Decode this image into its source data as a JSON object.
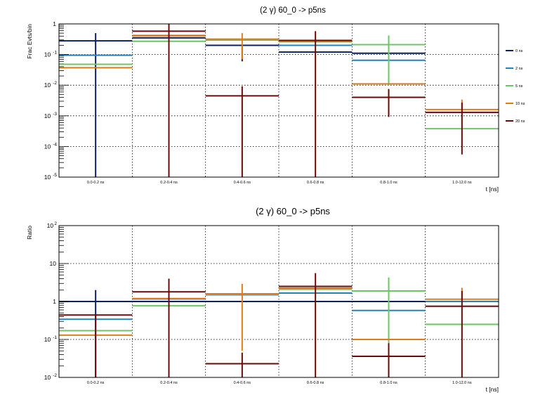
{
  "chart_data": [
    {
      "type": "line",
      "title": "(2 γ) 60_0 -> p5ns",
      "xlabel": "t [ns]",
      "ylabel": "Frac Evts/bin",
      "log_y": true,
      "ylim": [
        1e-05,
        1
      ],
      "grid": true,
      "legend_position": "right",
      "categories": [
        "0.0-0.2 ns",
        "0.2-0.4 ns",
        "0.4-0.6 ns",
        "0.6-0.8 ns",
        "0.8-1.0 ns",
        "1.0-12.0 ns"
      ],
      "y_ticks": [
        {
          "value": 1,
          "base": "1",
          "exp": ""
        },
        {
          "value": 0.1,
          "base": "10",
          "exp": "-1"
        },
        {
          "value": 0.01,
          "base": "10",
          "exp": "-2"
        },
        {
          "value": 0.001,
          "base": "10",
          "exp": "-3"
        },
        {
          "value": 0.0001,
          "base": "10",
          "exp": "-4"
        },
        {
          "value": 1e-05,
          "base": "10",
          "exp": "-5"
        }
      ],
      "series": [
        {
          "name": "0 ns",
          "color": "#0b1f5c",
          "values": [
            0.28,
            0.35,
            0.2,
            0.12,
            0.11,
            null
          ],
          "err_low": [
            1e-05,
            null,
            0.06,
            null,
            null,
            null
          ],
          "err_high": [
            0.5,
            null,
            null,
            null,
            null,
            null
          ]
        },
        {
          "name": "2 ns",
          "color": "#2a80b9",
          "values": [
            0.095,
            0.41,
            0.3,
            0.2,
            0.065,
            null
          ],
          "err_low": [
            null,
            null,
            null,
            null,
            null,
            null
          ],
          "err_high": [
            null,
            null,
            null,
            null,
            null,
            null
          ]
        },
        {
          "name": "5 ns",
          "color": "#6cc665",
          "values": [
            0.048,
            0.27,
            0.31,
            0.26,
            0.21,
            0.00038
          ],
          "err_low": [
            null,
            null,
            null,
            null,
            0.01,
            null
          ],
          "err_high": [
            null,
            null,
            null,
            null,
            0.42,
            null
          ]
        },
        {
          "name": "10 ns",
          "color": "#e07b1a",
          "values": [
            0.037,
            0.42,
            0.32,
            0.27,
            0.011,
            0.0016
          ],
          "err_low": [
            null,
            0.0026,
            0.07,
            null,
            null,
            null
          ],
          "err_high": [
            null,
            null,
            0.5,
            null,
            null,
            0.0034
          ]
        },
        {
          "name": "20 ns",
          "color": "#6b0a0a",
          "values": [
            null,
            0.58,
            0.0045,
            0.29,
            0.004,
            0.0013
          ],
          "err_low": [
            null,
            1e-05,
            1e-05,
            1e-05,
            0.00092,
            5.5e-05
          ],
          "err_high": [
            null,
            1.0,
            0.0092,
            0.58,
            0.0075,
            0.0027
          ]
        }
      ]
    },
    {
      "type": "line",
      "title": "(2 γ) 60_0 -> p5ns",
      "xlabel": "t [ns]",
      "ylabel": "Ratio",
      "log_y": true,
      "ylim": [
        0.01,
        100
      ],
      "grid": true,
      "categories": [
        "0.0-0.2 ns",
        "0.2-0.4 ns",
        "0.4-0.6 ns",
        "0.6-0.8 ns",
        "0.8-1.0 ns",
        "1.0-12.0 ns"
      ],
      "y_ticks": [
        {
          "value": 100,
          "base": "10",
          "exp": "2"
        },
        {
          "value": 10,
          "base": "10",
          "exp": ""
        },
        {
          "value": 1,
          "base": "1",
          "exp": ""
        },
        {
          "value": 0.1,
          "base": "10",
          "exp": "-1"
        },
        {
          "value": 0.01,
          "base": "10",
          "exp": "-2"
        }
      ],
      "series": [
        {
          "name": "0 ns",
          "color": "#0b1f5c",
          "values": [
            1.0,
            1.0,
            1.0,
            1.0,
            1.0,
            1.0
          ],
          "err_low": [
            0.01,
            null,
            null,
            null,
            null,
            null
          ],
          "err_high": [
            2.0,
            null,
            null,
            null,
            null,
            null
          ]
        },
        {
          "name": "2 ns",
          "color": "#2a80b9",
          "values": [
            0.34,
            1.17,
            1.5,
            1.67,
            0.58,
            1.0
          ],
          "err_low": [
            null,
            null,
            null,
            null,
            null,
            null
          ],
          "err_high": [
            null,
            null,
            null,
            null,
            null,
            null
          ]
        },
        {
          "name": "5 ns",
          "color": "#6cc665",
          "values": [
            0.17,
            0.77,
            1.55,
            2.1,
            1.9,
            0.25
          ],
          "err_low": [
            null,
            null,
            null,
            null,
            0.08,
            null
          ],
          "err_high": [
            null,
            null,
            null,
            null,
            4.3,
            null
          ]
        },
        {
          "name": "10 ns",
          "color": "#e07b1a",
          "values": [
            0.13,
            1.2,
            1.6,
            2.25,
            0.1,
            1.15
          ],
          "err_low": [
            null,
            null,
            0.05,
            null,
            null,
            null
          ],
          "err_high": [
            null,
            null,
            2.9,
            null,
            null,
            2.3
          ]
        },
        {
          "name": "20 ns",
          "color": "#6b0a0a",
          "values": [
            0.44,
            1.8,
            0.023,
            2.5,
            0.036,
            0.75
          ],
          "err_low": [
            0.01,
            0.01,
            0.01,
            0.01,
            0.01,
            0.01
          ],
          "err_high": [
            null,
            4.0,
            0.045,
            5.6,
            0.08,
            1.9
          ]
        }
      ]
    }
  ]
}
